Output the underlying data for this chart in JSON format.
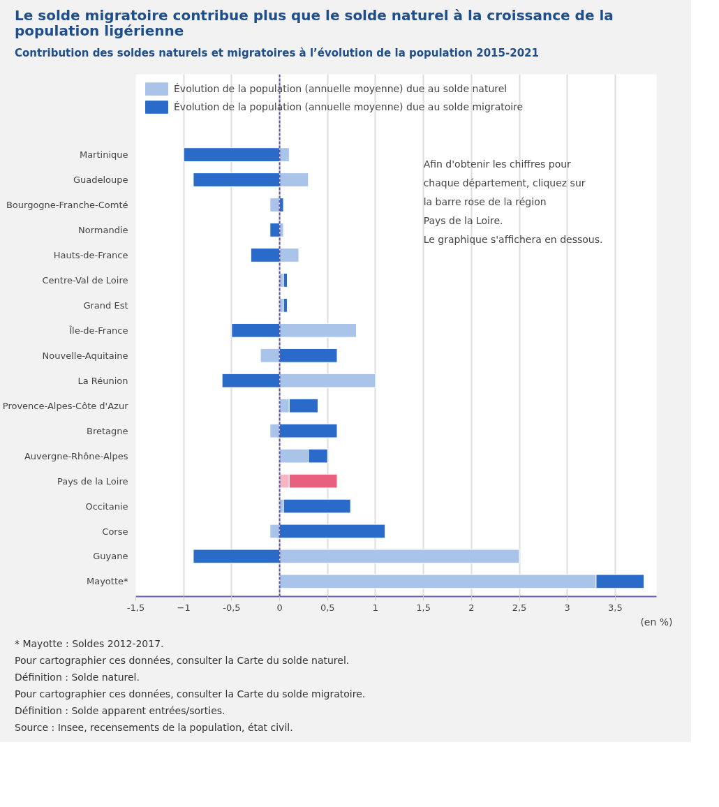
{
  "chart_data": {
    "type": "bar",
    "orientation": "horizontal",
    "stacked": true,
    "title": "Le solde migratoire contribue plus que le solde naturel à la croissance de la population ligérienne",
    "subtitle": "Contribution des soldes naturels et migratoires à l’évolution de la population 2015-2021",
    "xlabel": "(en %)",
    "categories": [
      "Martinique",
      "Guadeloupe",
      "Bourgogne-Franche-Comté",
      "Normandie",
      "Hauts-de-France",
      "Centre-Val de Loire",
      "Grand Est",
      "Île-de-France",
      "Nouvelle-Aquitaine",
      "La Réunion",
      "Provence-Alpes-Côte d'Azur",
      "Bretagne",
      "Auvergne-Rhône-Alpes",
      "Pays de la Loire",
      "Occitanie",
      "Corse",
      "Guyane",
      "Mayotte*"
    ],
    "series": [
      {
        "name": "Évolution de la population (annuelle moyenne) due au solde naturel",
        "color": "#a9c4e8",
        "colors": [
          "#a9c4e8",
          "#a9c4e8",
          "#a9c4e8",
          "#a9c4e8",
          "#a9c4e8",
          "#a9c4e8",
          "#a9c4e8",
          "#a9c4e8",
          "#a9c4e8",
          "#a9c4e8",
          "#a9c4e8",
          "#a9c4e8",
          "#a9c4e8",
          "#f4b6c2",
          "#a9c4e8",
          "#a9c4e8",
          "#a9c4e8",
          "#a9c4e8"
        ],
        "values": [
          0.1,
          0.3,
          -0.1,
          0.04,
          0.2,
          0.04,
          0.04,
          0.8,
          -0.2,
          1.0,
          0.1,
          -0.1,
          0.3,
          0.1,
          0.04,
          -0.1,
          2.5,
          3.3
        ]
      },
      {
        "name": "Évolution de la population (annuelle moyenne) due au solde migratoire",
        "color": "#2a6ac8",
        "colors": [
          "#2a6ac8",
          "#2a6ac8",
          "#2a6ac8",
          "#2a6ac8",
          "#2a6ac8",
          "#2a6ac8",
          "#2a6ac8",
          "#2a6ac8",
          "#2a6ac8",
          "#2a6ac8",
          "#2a6ac8",
          "#2a6ac8",
          "#2a6ac8",
          "#e8607e",
          "#2a6ac8",
          "#2a6ac8",
          "#2a6ac8",
          "#2a6ac8"
        ],
        "values": [
          -1.0,
          -0.9,
          0.04,
          -0.1,
          -0.3,
          0.04,
          0.04,
          -0.5,
          0.6,
          -0.6,
          0.3,
          0.6,
          0.2,
          0.5,
          0.7,
          1.1,
          -0.9,
          0.5
        ]
      }
    ],
    "xlim": [
      -1.5,
      3.93
    ],
    "xticks": [
      {
        "value": -1.5,
        "label": "-1,5"
      },
      -1,
      {
        "value": -0.5,
        "label": "-0,5"
      },
      0,
      {
        "value": 0.5,
        "label": "0,5"
      },
      1,
      {
        "value": 1.5,
        "label": "1,5"
      },
      2,
      {
        "value": 2.5,
        "label": "2,5"
      },
      3,
      {
        "value": 3.5,
        "label": "3,5"
      }
    ],
    "grid": "x",
    "legend": "top",
    "ref_lines": [
      {
        "axis": "x",
        "value": 0,
        "color": "#5b4fa8",
        "line_style": "dashed"
      }
    ],
    "annotations": [
      "Afin d'obtenir les chiffres pour\nchaque département, cliquez sur\nla barre rose de la région\nPays de la Loire.\nLe graphique s'affichera en dessous.",
      "* Mayotte : Soldes 2012-2017.",
      "Pour cartographier ces données, consulter la Carte du solde naturel.",
      "Définition : Solde naturel.",
      "Pour cartographier ces données, consulter la Carte du solde migratoire.",
      "Définition : Solde apparent entrées/sorties.",
      "Source : Insee, recensements de la population, état civil."
    ]
  }
}
